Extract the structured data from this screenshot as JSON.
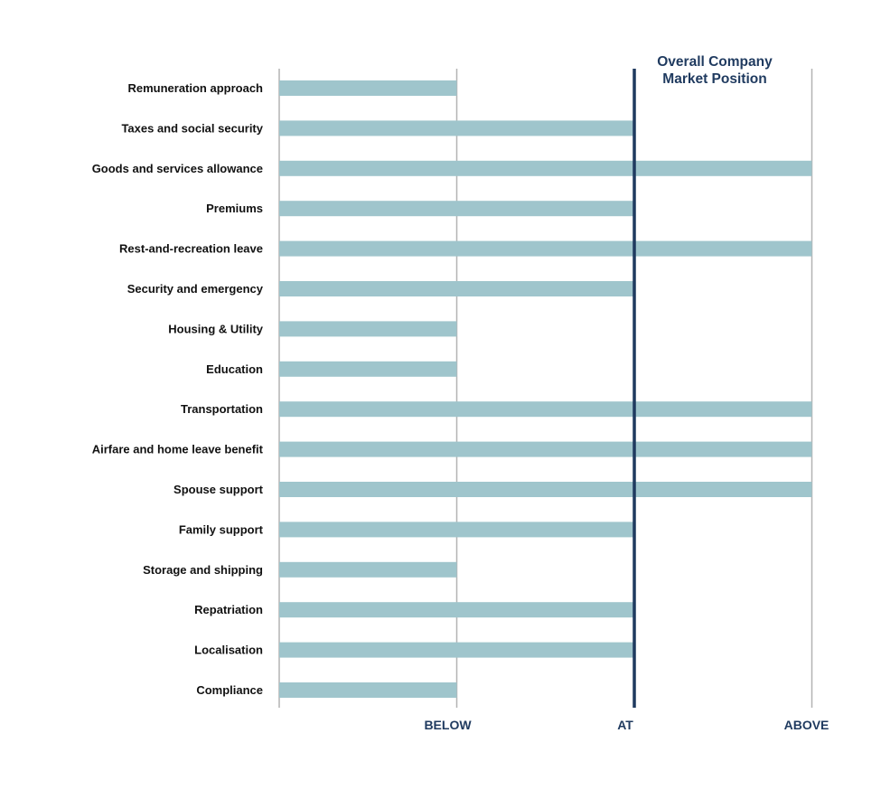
{
  "chart_data": {
    "type": "bar",
    "orientation": "horizontal",
    "categories": [
      "Remuneration approach",
      "Taxes and social security",
      "Goods and services allowance",
      "Premiums",
      "Rest-and-recreation leave",
      "Security and emergency",
      "Housing & Utility",
      "Education",
      "Transportation",
      "Airfare and home leave benefit",
      "Spouse support",
      "Family support",
      "Storage and shipping",
      "Repatriation",
      "Localisation",
      "Compliance"
    ],
    "values": [
      1,
      2,
      3,
      2,
      3,
      2,
      1,
      1,
      3,
      3,
      3,
      2,
      1,
      2,
      2,
      1
    ],
    "x_ticks": [
      {
        "value": 1,
        "label": "BELOW"
      },
      {
        "value": 2,
        "label": "AT"
      },
      {
        "value": 3,
        "label": "ABOVE"
      }
    ],
    "xlim": [
      0,
      3
    ],
    "marker": {
      "value": 2,
      "label_line1": "Overall Company",
      "label_line2": "Market Position"
    },
    "grid": true,
    "legend": "none",
    "colors": {
      "bar": "#9fc5cc",
      "marker": "#1f3a5f",
      "grid": "#b3b3b3",
      "category_text": "#111111",
      "tick_text": "#1f3a5f"
    }
  }
}
